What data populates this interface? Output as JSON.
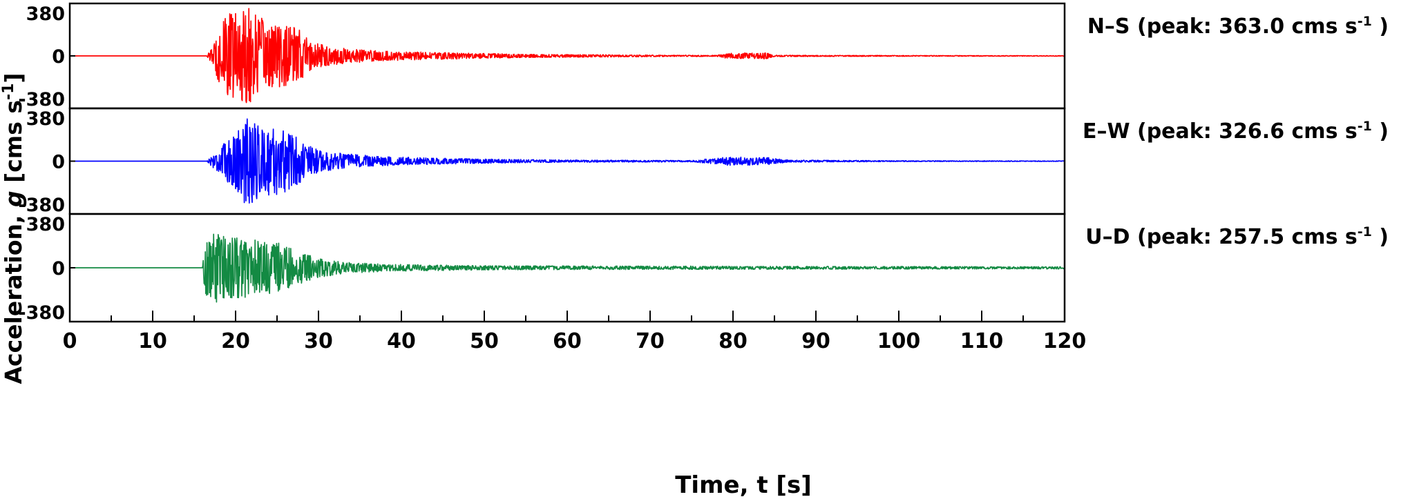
{
  "chart_data": {
    "type": "line",
    "xlabel": {
      "prefix": "Time, ",
      "var": "t",
      "suffix": " [s]"
    },
    "ylabel": {
      "prefix": "Acceleration, ",
      "var": "g",
      "unit_open": "  [cms s",
      "unit_exp": "-1",
      "unit_close": "]"
    },
    "xlim": [
      0,
      120
    ],
    "x_ticks": [
      0,
      10,
      20,
      30,
      40,
      50,
      60,
      70,
      80,
      90,
      100,
      110,
      120
    ],
    "x_minor_step": 5,
    "ylim": [
      -380,
      380
    ],
    "y_ticks": [
      380,
      0,
      -380
    ],
    "y_tick_labels": [
      "380",
      "0",
      "-380"
    ],
    "grid": false,
    "series": [
      {
        "component": "N–S",
        "peak_prefix": "(peak: ",
        "peak": "363.0",
        "unit": " cms s",
        "unit_exp": "-1",
        "peak_suffix": " )",
        "color": "#ff0000",
        "onset": 16.5,
        "envelope": [
          [
            0,
            0
          ],
          [
            16.5,
            0
          ],
          [
            17.2,
            60
          ],
          [
            18,
            200
          ],
          [
            19,
            300
          ],
          [
            20,
            330
          ],
          [
            21.5,
            363
          ],
          [
            22.5,
            300
          ],
          [
            24,
            240
          ],
          [
            26,
            220
          ],
          [
            27.5,
            200
          ],
          [
            29,
            110
          ],
          [
            31,
            70
          ],
          [
            34,
            50
          ],
          [
            38,
            35
          ],
          [
            44,
            25
          ],
          [
            50,
            18
          ],
          [
            55,
            12
          ],
          [
            65,
            8
          ],
          [
            72,
            5
          ],
          [
            78,
            4
          ],
          [
            79.5,
            20
          ],
          [
            84,
            22
          ],
          [
            85,
            5
          ],
          [
            100,
            3
          ],
          [
            120,
            2
          ]
        ]
      },
      {
        "component": "E–W",
        "peak_prefix": "(peak: ",
        "peak": "326.6",
        "unit": " cms s",
        "unit_exp": "-1",
        "peak_suffix": " )",
        "color": "#0000ff",
        "onset": 16.5,
        "envelope": [
          [
            0,
            0
          ],
          [
            16.5,
            0
          ],
          [
            17.5,
            60
          ],
          [
            19,
            150
          ],
          [
            20,
            200
          ],
          [
            21,
            300
          ],
          [
            21.5,
            326
          ],
          [
            23,
            250
          ],
          [
            25.5,
            240
          ],
          [
            27,
            200
          ],
          [
            28.5,
            120
          ],
          [
            30,
            80
          ],
          [
            33,
            55
          ],
          [
            37,
            35
          ],
          [
            42,
            25
          ],
          [
            50,
            15
          ],
          [
            60,
            8
          ],
          [
            75,
            5
          ],
          [
            79.5,
            30
          ],
          [
            84,
            28
          ],
          [
            86.5,
            8
          ],
          [
            100,
            3
          ],
          [
            120,
            2
          ]
        ]
      },
      {
        "component": "U–D",
        "peak_prefix": "(peak: ",
        "peak": "257.5",
        "unit": " cms s",
        "unit_exp": "-1",
        "peak_suffix": " )",
        "color": "#138a43",
        "onset": 16,
        "envelope": [
          [
            0,
            0
          ],
          [
            16,
            0
          ],
          [
            16.3,
            200
          ],
          [
            17.2,
            257
          ],
          [
            18.5,
            230
          ],
          [
            20,
            220
          ],
          [
            22,
            210
          ],
          [
            25,
            180
          ],
          [
            27,
            130
          ],
          [
            30,
            70
          ],
          [
            33,
            40
          ],
          [
            38,
            25
          ],
          [
            50,
            15
          ],
          [
            70,
            12
          ],
          [
            90,
            10
          ],
          [
            120,
            8
          ]
        ]
      }
    ]
  }
}
